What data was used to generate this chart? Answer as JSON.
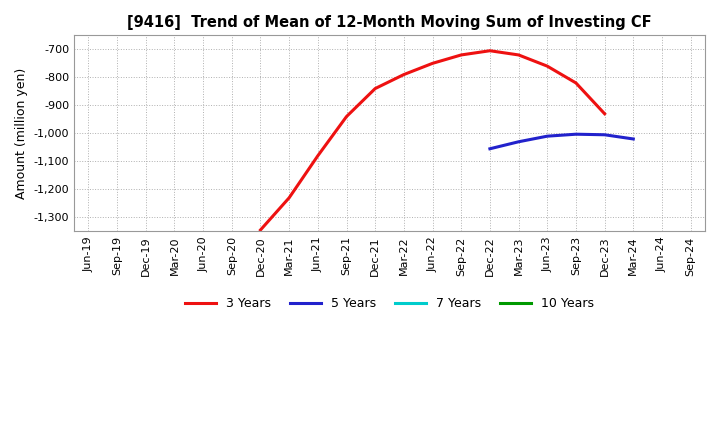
{
  "title": "[9416]  Trend of Mean of 12-Month Moving Sum of Investing CF",
  "ylabel": "Amount (million yen)",
  "ylim": [
    -1350,
    -650
  ],
  "yticks": [
    -1300,
    -1200,
    -1100,
    -1000,
    -900,
    -800,
    -700
  ],
  "background_color": "#ffffff",
  "plot_bg_color": "#ffffff",
  "grid_color": "#b0b0b0",
  "x_labels": [
    "Jun-19",
    "Sep-19",
    "Dec-19",
    "Mar-20",
    "Jun-20",
    "Sep-20",
    "Dec-20",
    "Mar-21",
    "Jun-21",
    "Sep-21",
    "Dec-21",
    "Mar-22",
    "Jun-22",
    "Sep-22",
    "Dec-22",
    "Mar-23",
    "Jun-23",
    "Sep-23",
    "Dec-23",
    "Mar-24",
    "Jun-24",
    "Sep-24"
  ],
  "series_3y": {
    "color": "#ee1111",
    "label": "3 Years",
    "values": [
      null,
      null,
      null,
      null,
      null,
      null,
      -1345,
      -1230,
      -1080,
      -940,
      -840,
      -790,
      -750,
      -720,
      -705,
      -720,
      -760,
      -820,
      -930,
      null,
      null,
      null
    ]
  },
  "series_5y": {
    "color": "#2222cc",
    "label": "5 Years",
    "values": [
      null,
      null,
      null,
      null,
      null,
      null,
      null,
      null,
      null,
      null,
      null,
      null,
      null,
      null,
      -1055,
      -1030,
      -1010,
      -1003,
      -1005,
      -1020,
      null,
      null
    ]
  },
  "series_7y": {
    "color": "#00cccc",
    "label": "7 Years",
    "values": [
      null,
      null,
      null,
      null,
      null,
      null,
      null,
      null,
      null,
      null,
      null,
      null,
      null,
      null,
      null,
      null,
      null,
      null,
      null,
      null,
      null,
      null
    ]
  },
  "series_10y": {
    "color": "#009900",
    "label": "10 Years",
    "values": [
      null,
      null,
      null,
      null,
      null,
      null,
      null,
      null,
      null,
      null,
      null,
      null,
      null,
      null,
      null,
      null,
      null,
      null,
      null,
      null,
      null,
      null
    ]
  }
}
